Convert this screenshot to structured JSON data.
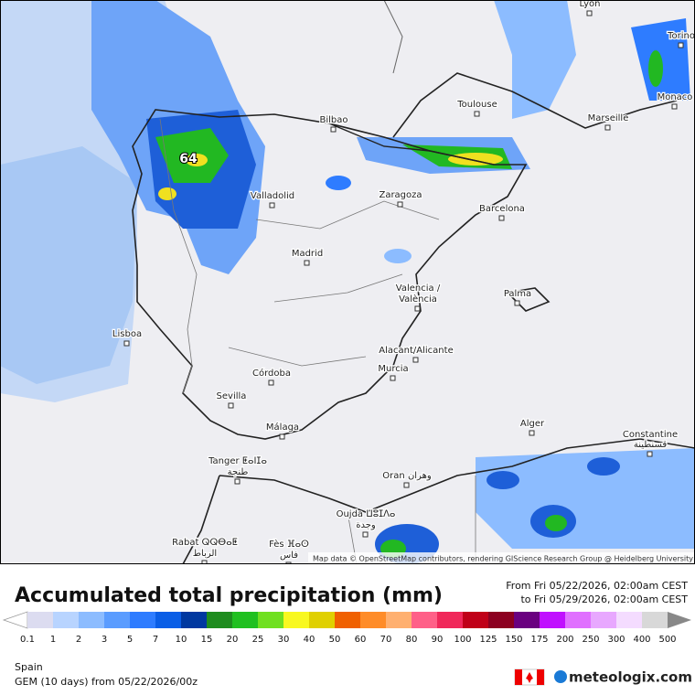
{
  "map": {
    "cities": [
      "Lyon",
      "Torino",
      "Monaco",
      "Toulouse",
      "Marseille",
      "Bilbao",
      "Valladolid",
      "Zaragoza",
      "Barcelona",
      "Madrid",
      "Valencia /",
      "València",
      "Palma",
      "Lisboa",
      "Alacant/Alicante",
      "Murcia",
      "Córdoba",
      "Sevilla",
      "Málaga",
      "Alger",
      "Constantine",
      "قسنطينة",
      "Tanger ⵟⴰⵏⵊⴰ",
      "طنجة",
      "Oran وهران",
      "Oujda ⵡⵓⵊⴷⴰ",
      "وجدة",
      "Rabat ⵕⵕⴱⴰⵟ",
      "الرباط",
      "Fès ⴼⴰⵙ",
      "فاس"
    ],
    "max_label": "64",
    "attribution": "Map data © OpenStreetMap contributors, rendering GIScience Research Group @ Heidelberg University"
  },
  "footer": {
    "title": "Accumulated total precipitation (mm)",
    "from": "From Fri 05/22/2026, 02:00am CEST",
    "to": "to Fri 05/29/2026, 02:00am CEST",
    "legend_labels": [
      "0.1",
      "1",
      "2",
      "3",
      "5",
      "7",
      "10",
      "15",
      "20",
      "25",
      "30",
      "40",
      "50",
      "60",
      "70",
      "80",
      "90",
      "100",
      "125",
      "150",
      "175",
      "200",
      "250",
      "300",
      "400",
      "500"
    ],
    "legend_colors": [
      "#ffffff",
      "#dcdcf0",
      "#b8d4ff",
      "#8cbcff",
      "#5a9cff",
      "#2e7cff",
      "#0a5ee6",
      "#0038a0",
      "#1e8c1e",
      "#20c020",
      "#70e020",
      "#f8f820",
      "#e0d000",
      "#f06000",
      "#ff8c28",
      "#ffb070",
      "#ff6088",
      "#f0285a",
      "#c00018",
      "#8c0020",
      "#6a0080",
      "#c010ff",
      "#e070ff",
      "#e8a8ff",
      "#f4dcff",
      "#d8d8d8",
      "#888888"
    ],
    "region": "Spain",
    "model": "GEM (10 days) from 05/22/2026/00z",
    "brand": "meteologix.com"
  }
}
